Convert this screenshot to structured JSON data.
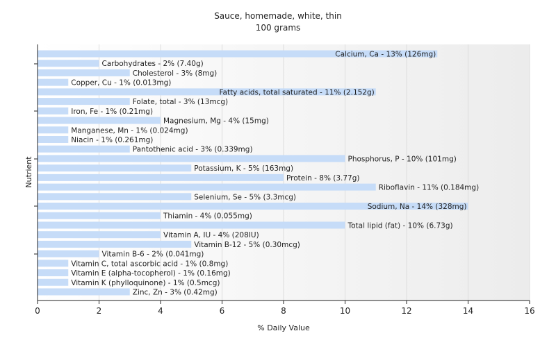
{
  "chart_data": {
    "type": "bar",
    "orientation": "horizontal",
    "title": "Sauce, homemade, white, thin",
    "subtitle": "100 grams",
    "xlabel": "% Daily Value",
    "ylabel": "Nutrient",
    "xlim": [
      0,
      16
    ],
    "xticks": [
      "0",
      "2",
      "4",
      "6",
      "8",
      "10",
      "12",
      "14",
      "16"
    ],
    "grid": true,
    "bar_color": "#c6dcf8",
    "bars": [
      {
        "label": "Calcium, Ca - 13% (126mg)",
        "value": 13
      },
      {
        "label": "Carbohydrates - 2% (7.40g)",
        "value": 2
      },
      {
        "label": "Cholesterol - 3% (8mg)",
        "value": 3
      },
      {
        "label": "Copper, Cu - 1% (0.013mg)",
        "value": 1
      },
      {
        "label": "Fatty acids, total saturated - 11% (2.152g)",
        "value": 11
      },
      {
        "label": "Folate, total - 3% (13mcg)",
        "value": 3
      },
      {
        "label": "Iron, Fe - 1% (0.21mg)",
        "value": 1
      },
      {
        "label": "Magnesium, Mg - 4% (15mg)",
        "value": 4
      },
      {
        "label": "Manganese, Mn - 1% (0.024mg)",
        "value": 1
      },
      {
        "label": "Niacin - 1% (0.261mg)",
        "value": 1
      },
      {
        "label": "Pantothenic acid - 3% (0.339mg)",
        "value": 3
      },
      {
        "label": "Phosphorus, P - 10% (101mg)",
        "value": 10
      },
      {
        "label": "Potassium, K - 5% (163mg)",
        "value": 5
      },
      {
        "label": "Protein - 8% (3.77g)",
        "value": 8
      },
      {
        "label": "Riboflavin - 11% (0.184mg)",
        "value": 11
      },
      {
        "label": "Selenium, Se - 5% (3.3mcg)",
        "value": 5
      },
      {
        "label": "Sodium, Na - 14% (328mg)",
        "value": 14
      },
      {
        "label": "Thiamin - 4% (0.055mg)",
        "value": 4
      },
      {
        "label": "Total lipid (fat) - 10% (6.73g)",
        "value": 10
      },
      {
        "label": "Vitamin A, IU - 4% (208IU)",
        "value": 4
      },
      {
        "label": "Vitamin B-12 - 5% (0.30mcg)",
        "value": 5
      },
      {
        "label": "Vitamin B-6 - 2% (0.041mg)",
        "value": 2
      },
      {
        "label": "Vitamin C, total ascorbic acid - 1% (0.8mg)",
        "value": 1
      },
      {
        "label": "Vitamin E (alpha-tocopherol) - 1% (0.16mg)",
        "value": 1
      },
      {
        "label": "Vitamin K (phylloquinone) - 1% (0.5mcg)",
        "value": 1
      },
      {
        "label": "Zinc, Zn - 3% (0.42mg)",
        "value": 3
      }
    ]
  }
}
